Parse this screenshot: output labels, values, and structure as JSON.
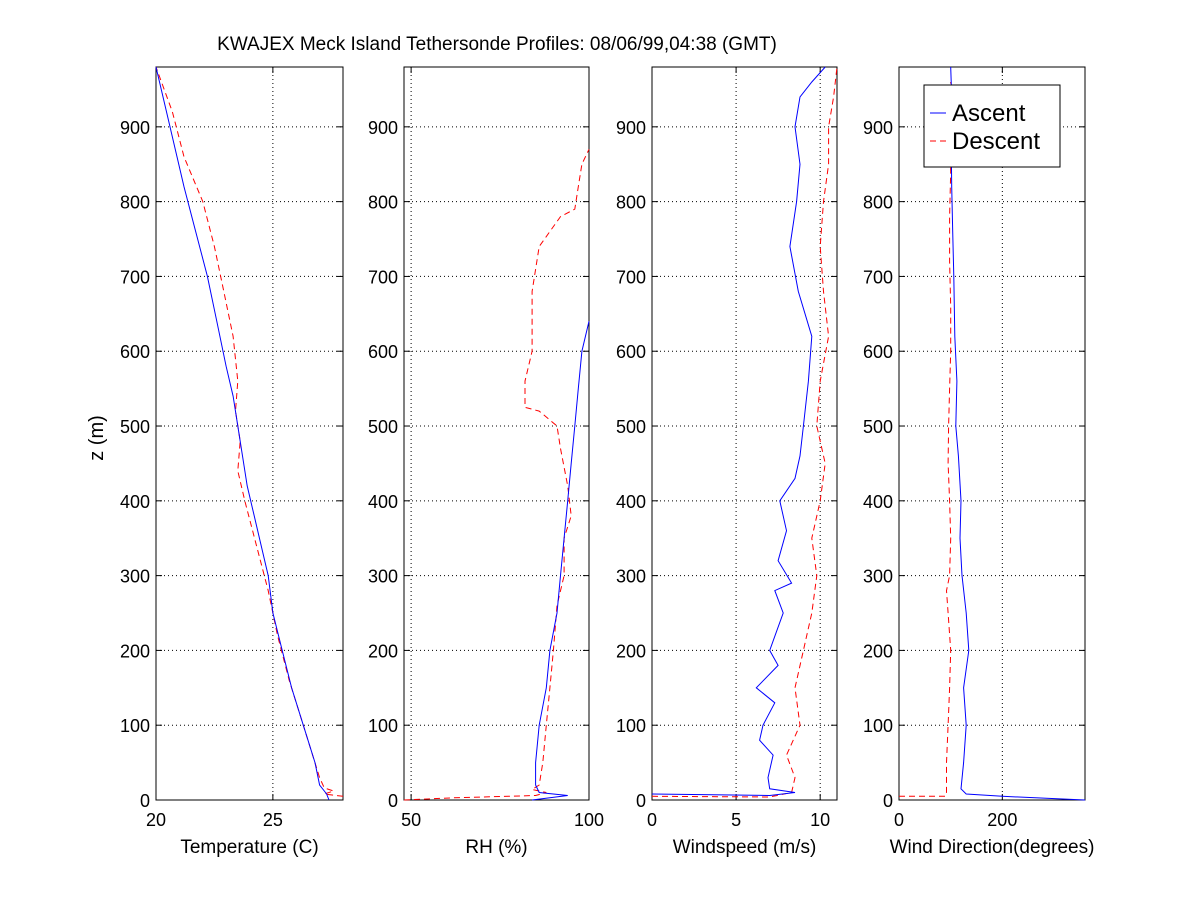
{
  "figure": {
    "title": "KWAJEX Meck Island Tethersonde Profiles: 08/06/99,04:38 (GMT)",
    "ylabel": "z (m)"
  },
  "legend": {
    "placement": "top-right",
    "entries": [
      {
        "label": "Ascent",
        "color": "#0000ff",
        "style": "solid"
      },
      {
        "label": "Descent",
        "color": "#ff0000",
        "style": "dashed"
      }
    ]
  },
  "colors": {
    "ascent": "#0000ff",
    "descent": "#ff0000",
    "grid": "#000000",
    "axes": "#000000"
  },
  "chart_data": [
    {
      "type": "line",
      "xlabel": "Temperature (C)",
      "xlim": [
        20,
        28
      ],
      "ylim": [
        0,
        980
      ],
      "xticks": [
        20,
        25
      ],
      "yticks": [
        0,
        100,
        200,
        300,
        400,
        500,
        600,
        700,
        800,
        900
      ],
      "grid": true,
      "series": [
        {
          "name": "Ascent",
          "points": [
            [
              27.4,
              0
            ],
            [
              27.3,
              8
            ],
            [
              27.2,
              12
            ],
            [
              27.0,
              20
            ],
            [
              26.8,
              50
            ],
            [
              26.3,
              100
            ],
            [
              25.8,
              150
            ],
            [
              25.4,
              200
            ],
            [
              25.0,
              250
            ],
            [
              24.8,
              300
            ],
            [
              24.5,
              340
            ],
            [
              24.2,
              380
            ],
            [
              23.9,
              420
            ],
            [
              23.7,
              460
            ],
            [
              23.5,
              500
            ],
            [
              23.3,
              540
            ],
            [
              23.0,
              580
            ],
            [
              22.6,
              640
            ],
            [
              22.2,
              700
            ],
            [
              21.7,
              760
            ],
            [
              21.2,
              820
            ],
            [
              20.9,
              860
            ],
            [
              20.6,
              900
            ],
            [
              20.3,
              940
            ],
            [
              20.0,
              980
            ]
          ]
        },
        {
          "name": "Descent",
          "points": [
            [
              28.0,
              5
            ],
            [
              27.2,
              8
            ],
            [
              27.6,
              12
            ],
            [
              27.2,
              16
            ],
            [
              27.0,
              30
            ],
            [
              26.3,
              100
            ],
            [
              25.7,
              160
            ],
            [
              25.2,
              220
            ],
            [
              24.8,
              280
            ],
            [
              24.3,
              340
            ],
            [
              23.8,
              400
            ],
            [
              23.5,
              440
            ],
            [
              23.6,
              480
            ],
            [
              23.4,
              520
            ],
            [
              23.5,
              560
            ],
            [
              23.3,
              620
            ],
            [
              22.9,
              680
            ],
            [
              22.5,
              740
            ],
            [
              22.0,
              800
            ],
            [
              21.2,
              860
            ],
            [
              20.7,
              920
            ],
            [
              20.0,
              980
            ]
          ]
        }
      ]
    },
    {
      "type": "line",
      "xlabel": "RH (%)",
      "xlim": [
        48,
        100
      ],
      "ylim": [
        0,
        980
      ],
      "xticks": [
        50,
        100
      ],
      "yticks": [
        0,
        100,
        200,
        300,
        400,
        500,
        600,
        700,
        800,
        900
      ],
      "grid": true,
      "series": [
        {
          "name": "Ascent",
          "points": [
            [
              84,
              0
            ],
            [
              94,
              6
            ],
            [
              86,
              10
            ],
            [
              85,
              20
            ],
            [
              85,
              50
            ],
            [
              86,
              100
            ],
            [
              88,
              150
            ],
            [
              89,
              200
            ],
            [
              91,
              250
            ],
            [
              92,
              300
            ],
            [
              93,
              350
            ],
            [
              94,
              400
            ],
            [
              95,
              450
            ],
            [
              96,
              500
            ],
            [
              97,
              550
            ],
            [
              98,
              600
            ],
            [
              100,
              640
            ]
          ]
        },
        {
          "name": "Descent",
          "points": [
            [
              48,
              0
            ],
            [
              62,
              3
            ],
            [
              85,
              6
            ],
            [
              88,
              10
            ],
            [
              84,
              14
            ],
            [
              86,
              20
            ],
            [
              87,
              50
            ],
            [
              88,
              100
            ],
            [
              89,
              150
            ],
            [
              90,
              200
            ],
            [
              91,
              260
            ],
            [
              93,
              300
            ],
            [
              93,
              350
            ],
            [
              95,
              380
            ],
            [
              94,
              420
            ],
            [
              92,
              470
            ],
            [
              91,
              500
            ],
            [
              86,
              520
            ],
            [
              82,
              525
            ],
            [
              82,
              560
            ],
            [
              84,
              600
            ],
            [
              84,
              680
            ],
            [
              86,
              740
            ],
            [
              92,
              780
            ],
            [
              96,
              790
            ],
            [
              97,
              820
            ],
            [
              98,
              850
            ],
            [
              100,
              870
            ]
          ]
        }
      ]
    },
    {
      "type": "line",
      "xlabel": "Windspeed (m/s)",
      "xlim": [
        0,
        11
      ],
      "ylim": [
        0,
        980
      ],
      "xticks": [
        0,
        5,
        10
      ],
      "yticks": [
        0,
        100,
        200,
        300,
        400,
        500,
        600,
        700,
        800,
        900
      ],
      "grid": true,
      "series": [
        {
          "name": "Ascent",
          "points": [
            [
              0,
              8
            ],
            [
              7,
              6
            ],
            [
              8.5,
              10
            ],
            [
              7.0,
              15
            ],
            [
              6.9,
              30
            ],
            [
              7.2,
              60
            ],
            [
              6.4,
              80
            ],
            [
              6.6,
              100
            ],
            [
              7.3,
              130
            ],
            [
              6.2,
              150
            ],
            [
              7.5,
              180
            ],
            [
              7.0,
              200
            ],
            [
              7.8,
              250
            ],
            [
              7.3,
              280
            ],
            [
              8.3,
              290
            ],
            [
              7.5,
              320
            ],
            [
              8.0,
              360
            ],
            [
              7.6,
              400
            ],
            [
              8.5,
              430
            ],
            [
              8.8,
              460
            ],
            [
              9.0,
              500
            ],
            [
              9.3,
              560
            ],
            [
              9.5,
              620
            ],
            [
              8.7,
              680
            ],
            [
              8.2,
              740
            ],
            [
              8.6,
              800
            ],
            [
              8.8,
              850
            ],
            [
              8.5,
              900
            ],
            [
              8.8,
              940
            ],
            [
              9.5,
              960
            ],
            [
              10.3,
              980
            ]
          ]
        },
        {
          "name": "Descent",
          "points": [
            [
              0,
              5
            ],
            [
              7,
              4
            ],
            [
              8.3,
              10
            ],
            [
              8.5,
              30
            ],
            [
              8.0,
              60
            ],
            [
              8.8,
              100
            ],
            [
              8.5,
              150
            ],
            [
              9.0,
              200
            ],
            [
              9.5,
              250
            ],
            [
              9.8,
              300
            ],
            [
              9.5,
              350
            ],
            [
              10.0,
              400
            ],
            [
              10.3,
              450
            ],
            [
              9.8,
              500
            ],
            [
              10.0,
              560
            ],
            [
              10.5,
              620
            ],
            [
              10.2,
              680
            ],
            [
              10.0,
              740
            ],
            [
              10.2,
              800
            ],
            [
              10.5,
              850
            ],
            [
              10.5,
              900
            ],
            [
              10.8,
              940
            ],
            [
              11.0,
              980
            ]
          ]
        }
      ]
    },
    {
      "type": "line",
      "xlabel": "Wind Direction(degrees)",
      "xlim": [
        0,
        360
      ],
      "ylim": [
        0,
        980
      ],
      "xticks": [
        0,
        200
      ],
      "yticks": [
        0,
        100,
        200,
        300,
        400,
        500,
        600,
        700,
        800,
        900
      ],
      "grid": true,
      "series": [
        {
          "name": "Ascent",
          "points": [
            [
              360,
              0
            ],
            [
              200,
              5
            ],
            [
              130,
              8
            ],
            [
              120,
              15
            ],
            [
              125,
              50
            ],
            [
              130,
              100
            ],
            [
              125,
              150
            ],
            [
              135,
              200
            ],
            [
              130,
              250
            ],
            [
              122,
              300
            ],
            [
              118,
              350
            ],
            [
              120,
              400
            ],
            [
              115,
              460
            ],
            [
              110,
              500
            ],
            [
              112,
              560
            ],
            [
              108,
              620
            ],
            [
              106,
              700
            ],
            [
              104,
              760
            ],
            [
              102,
              820
            ],
            [
              101,
              880
            ],
            [
              102,
              940
            ],
            [
              100,
              980
            ]
          ]
        },
        {
          "name": "Descent",
          "points": [
            [
              0,
              5
            ],
            [
              90,
              5
            ],
            [
              92,
              10
            ],
            [
              92,
              50
            ],
            [
              95,
              100
            ],
            [
              98,
              150
            ],
            [
              100,
              200
            ],
            [
              95,
              250
            ],
            [
              92,
              280
            ],
            [
              98,
              300
            ],
            [
              100,
              350
            ],
            [
              98,
              400
            ],
            [
              95,
              450
            ],
            [
              96,
              500
            ],
            [
              98,
              550
            ],
            [
              100,
              600
            ],
            [
              100,
              660
            ],
            [
              98,
              720
            ],
            [
              98,
              780
            ],
            [
              100,
              840
            ],
            [
              98,
              900
            ],
            [
              100,
              960
            ]
          ]
        }
      ]
    }
  ]
}
